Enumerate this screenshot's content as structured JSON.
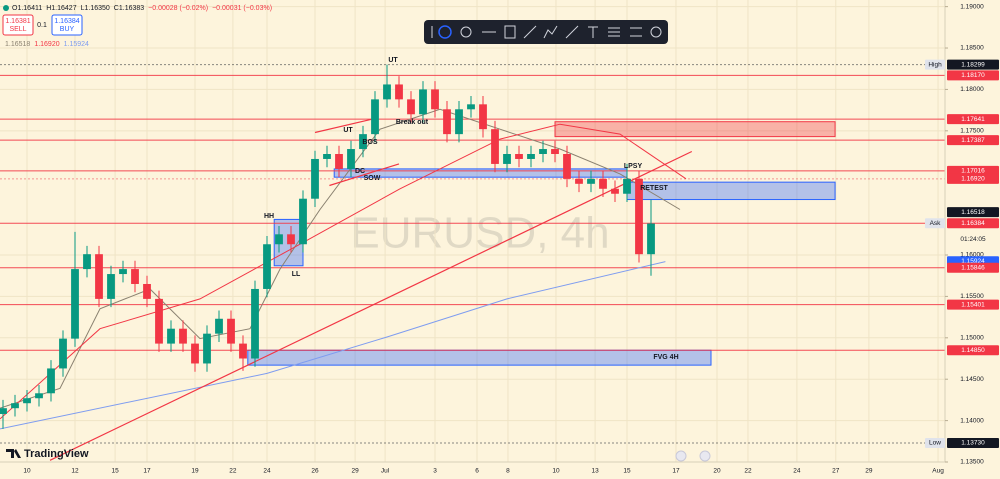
{
  "chart_data": {
    "type": "candlestick",
    "watermark": "EURUSD, 4h",
    "brand": "TradingView",
    "header": [
      "O1.16411",
      "H1.16427",
      "L1.16350",
      "C1.16383",
      "−0.00028 (−0.02%)",
      "−0.00031 (−0.03%)"
    ],
    "trade": {
      "sell_price": "1.16381",
      "sell": "SELL",
      "lot": "0.1",
      "buy_price": "1.16384",
      "buy": "BUY"
    },
    "up_color": "#089981",
    "down_color": "#f23645",
    "grid": true,
    "xlim": [
      -1.125,
      38.25
    ],
    "ylim": [
      1.135,
      1.1908
    ],
    "xticks": [
      {
        "value": 0,
        "label": "10"
      },
      {
        "value": 2,
        "label": "12"
      },
      {
        "value": 3.67,
        "label": "15"
      },
      {
        "value": 5,
        "label": "17"
      },
      {
        "value": 7,
        "label": "19"
      },
      {
        "value": 8.58,
        "label": "22"
      },
      {
        "value": 10,
        "label": "24"
      },
      {
        "value": 12,
        "label": "26"
      },
      {
        "value": 13.67,
        "label": "29"
      },
      {
        "value": 14.92,
        "label": "Jul"
      },
      {
        "value": 17,
        "label": "3"
      },
      {
        "value": 18.75,
        "label": "6"
      },
      {
        "value": 20.04,
        "label": "8"
      },
      {
        "value": 22.04,
        "label": "10"
      },
      {
        "value": 23.67,
        "label": "13"
      },
      {
        "value": 25,
        "label": "15"
      },
      {
        "value": 27.04,
        "label": "17"
      },
      {
        "value": 28.75,
        "label": "20"
      },
      {
        "value": 30.04,
        "label": "22"
      },
      {
        "value": 32.08,
        "label": "24"
      },
      {
        "value": 33.7,
        "label": "27"
      },
      {
        "value": 35.08,
        "label": "29"
      },
      {
        "value": 37.96,
        "label": "Aug"
      }
    ],
    "yticks": [
      {
        "value": 1.135,
        "label": "1.13500"
      },
      {
        "value": 1.14,
        "label": "1.14000"
      },
      {
        "value": 1.145,
        "label": "1.14500"
      },
      {
        "value": 1.15,
        "label": "1.15000"
      },
      {
        "value": 1.155,
        "label": "1.15500"
      },
      {
        "value": 1.16,
        "label": "1.16000"
      },
      {
        "value": 1.175,
        "label": "1.17500"
      },
      {
        "value": 1.18,
        "label": "1.18000"
      },
      {
        "value": 1.185,
        "label": "1.18500"
      },
      {
        "value": 1.19,
        "label": "1.19000"
      }
    ],
    "x": [
      -1,
      -0.5,
      0,
      0.5,
      1,
      1.5,
      2,
      2.5,
      3,
      3.5,
      4,
      4.5,
      5,
      5.5,
      6,
      6.5,
      7,
      7.5,
      8,
      8.5,
      9,
      9.5,
      10,
      10.5,
      11,
      11.5,
      12,
      12.5,
      13,
      13.5,
      14,
      14.5,
      15,
      15.5,
      16,
      16.5,
      17,
      17.5,
      18,
      18.5,
      19,
      19.5,
      20,
      20.5,
      21,
      21.5,
      22,
      22.5,
      23,
      23.5,
      24,
      24.5,
      25,
      25.5,
      26
    ],
    "open": [
      1.1408,
      1.1415,
      1.1421,
      1.1427,
      1.1433,
      1.1463,
      1.1499,
      1.1583,
      1.1601,
      1.1547,
      1.1577,
      1.1583,
      1.1565,
      1.1547,
      1.1493,
      1.1511,
      1.1493,
      1.1469,
      1.1505,
      1.1523,
      1.1493,
      1.1475,
      1.1559,
      1.1613,
      1.1625,
      1.1613,
      1.1668,
      1.1716,
      1.1722,
      1.1704,
      1.1728,
      1.1746,
      1.1788,
      1.1806,
      1.1788,
      1.177,
      1.18,
      1.1776,
      1.1746,
      1.1776,
      1.1782,
      1.1752,
      1.171,
      1.1722,
      1.1716,
      1.1722,
      1.1728,
      1.1722,
      1.1692,
      1.1686,
      1.1692,
      1.168,
      1.1674,
      1.1692,
      1.1601
    ],
    "high": [
      1.1425,
      1.1431,
      1.1437,
      1.1443,
      1.1473,
      1.1509,
      1.1628,
      1.1611,
      1.1611,
      1.1587,
      1.1593,
      1.1593,
      1.1575,
      1.1557,
      1.1521,
      1.1521,
      1.1503,
      1.1515,
      1.1533,
      1.1533,
      1.1503,
      1.1569,
      1.1623,
      1.1635,
      1.1635,
      1.1678,
      1.1726,
      1.1732,
      1.1732,
      1.1738,
      1.1756,
      1.1798,
      1.183,
      1.1816,
      1.1798,
      1.181,
      1.181,
      1.1786,
      1.1786,
      1.1792,
      1.1792,
      1.1762,
      1.1732,
      1.1732,
      1.1732,
      1.1738,
      1.1738,
      1.1732,
      1.1702,
      1.1702,
      1.1702,
      1.169,
      1.171,
      1.1702,
      1.1667
    ],
    "low": [
      1.139,
      1.1405,
      1.1411,
      1.1417,
      1.1423,
      1.1453,
      1.1489,
      1.1573,
      1.1537,
      1.1537,
      1.1567,
      1.1555,
      1.1537,
      1.1483,
      1.1483,
      1.1483,
      1.1459,
      1.1459,
      1.1495,
      1.1483,
      1.146,
      1.1465,
      1.1549,
      1.1603,
      1.1603,
      1.1603,
      1.1658,
      1.1706,
      1.1694,
      1.1694,
      1.1718,
      1.1736,
      1.1778,
      1.1778,
      1.176,
      1.176,
      1.1766,
      1.1736,
      1.1736,
      1.1766,
      1.1742,
      1.17,
      1.17,
      1.1706,
      1.1706,
      1.1712,
      1.1712,
      1.1682,
      1.1676,
      1.1676,
      1.167,
      1.1664,
      1.1664,
      1.1591,
      1.1575
    ],
    "close": [
      1.1415,
      1.1421,
      1.1427,
      1.1433,
      1.1463,
      1.1499,
      1.1583,
      1.1601,
      1.1547,
      1.1577,
      1.1583,
      1.1565,
      1.1547,
      1.1493,
      1.1511,
      1.1493,
      1.1469,
      1.1505,
      1.1523,
      1.1493,
      1.1475,
      1.1559,
      1.1613,
      1.1625,
      1.1613,
      1.1668,
      1.1716,
      1.1722,
      1.1704,
      1.1728,
      1.1746,
      1.1788,
      1.1806,
      1.1788,
      1.177,
      1.18,
      1.1776,
      1.1746,
      1.1776,
      1.1782,
      1.1752,
      1.171,
      1.1722,
      1.1716,
      1.1722,
      1.1728,
      1.1722,
      1.1692,
      1.1686,
      1.1692,
      1.168,
      1.1674,
      1.1692,
      1.1601,
      1.1638
    ],
    "moving_averages": [
      {
        "color": "#8a8170",
        "label": "1.16518",
        "x": [
          -1.125,
          1.375,
          3.04,
          5.125,
          7.21,
          9.29,
          10.54,
          12.21,
          14.71,
          17.21,
          19.71,
          22.21,
          24.71,
          27.21
        ],
        "y": [
          1.1415,
          1.1439,
          1.1535,
          1.1559,
          1.1499,
          1.1511,
          1.1583,
          1.1655,
          1.1752,
          1.1776,
          1.1752,
          1.1728,
          1.1698,
          1.1655
        ]
      },
      {
        "color": "#f23645",
        "label": "1.16920",
        "x": [
          -1.125,
          3.04,
          7.21,
          11.375,
          15.54,
          19.71,
          22.21,
          24.71,
          27.46
        ],
        "y": [
          1.1402,
          1.1511,
          1.1547,
          1.1613,
          1.168,
          1.174,
          1.1758,
          1.1746,
          1.1692
        ]
      },
      {
        "color": "#7e9cf0",
        "label": "1.15924",
        "x": [
          -1.125,
          10,
          15,
          20,
          26.6
        ],
        "y": [
          1.139,
          1.1457,
          1.1501,
          1.1547,
          1.1592
        ]
      }
    ],
    "trendlines": [
      {
        "color": "#f23645",
        "x": [
          0.96,
          27.7
        ],
        "y": [
          1.1352,
          1.1725
        ]
      },
      {
        "color": "#f23645",
        "x": [
          12,
          14.375
        ],
        "y": [
          1.1748,
          1.1764
        ]
      },
      {
        "color": "#f23645",
        "x": [
          12.6,
          15.5
        ],
        "y": [
          1.1684,
          1.171
        ]
      }
    ],
    "zones": [
      {
        "color": "#f23645",
        "x0": 22,
        "x1": 33.67,
        "y0": 1.1743,
        "y1": 1.1761
      },
      {
        "color": "#2962ff",
        "x0": 25,
        "x1": 33.67,
        "y0": 1.1667,
        "y1": 1.1688
      },
      {
        "color": "#2962ff",
        "x0": 9.2,
        "x1": 28.5,
        "y0": 1.1467,
        "y1": 1.1485
      },
      {
        "color": "#2962ff",
        "x0": 10.3,
        "x1": 11.5,
        "y0": 1.1587,
        "y1": 1.1643
      },
      {
        "color": "#2962ff",
        "x0": 12.8,
        "x1": 25,
        "y0": 1.1694,
        "y1": 1.1704
      }
    ],
    "annotations": [
      "UT",
      "UT",
      "BOS",
      "Break out",
      "DC",
      "SOW",
      "HH",
      "LL",
      "LPSY",
      "RETEST",
      "FVG 4H"
    ],
    "levels": [
      {
        "value": 1.18299,
        "label": "1.18299",
        "color": "#131722",
        "tag": "High",
        "line": "dotted"
      },
      {
        "value": 1.1817,
        "label": "1.18170",
        "color": "#f23645",
        "line": "solid"
      },
      {
        "value": 1.17641,
        "label": "1.17641",
        "color": "#f23645",
        "line": "solid"
      },
      {
        "value": 1.17387,
        "label": "1.17387",
        "color": "#f23645",
        "line": "solid"
      },
      {
        "value": 1.17016,
        "label": "1.17016",
        "color": "#f23645",
        "line": "solid"
      },
      {
        "value": 1.1692,
        "label": "1.16920",
        "color": "#f23645",
        "line": "dotted"
      },
      {
        "value": 1.16518,
        "label": "1.16518",
        "color": "#131722",
        "line": "none"
      },
      {
        "value": 1.16384,
        "label": "1.16384",
        "color": "#f23645",
        "tag": "Ask",
        "countdown": "01:24:05",
        "line": "solid"
      },
      {
        "value": 1.15924,
        "label": "1.15924",
        "color": "#2962ff",
        "line": "none"
      },
      {
        "value": 1.15846,
        "label": "1.15846",
        "color": "#f23645",
        "line": "solid"
      },
      {
        "value": 1.15401,
        "label": "1.15401",
        "color": "#f23645",
        "line": "solid"
      },
      {
        "value": 1.1485,
        "label": "1.14850",
        "color": "#f23645",
        "line": "solid"
      },
      {
        "value": 1.1373,
        "label": "1.13730",
        "color": "#131722",
        "tag": "Low",
        "line": "dotted"
      }
    ]
  }
}
